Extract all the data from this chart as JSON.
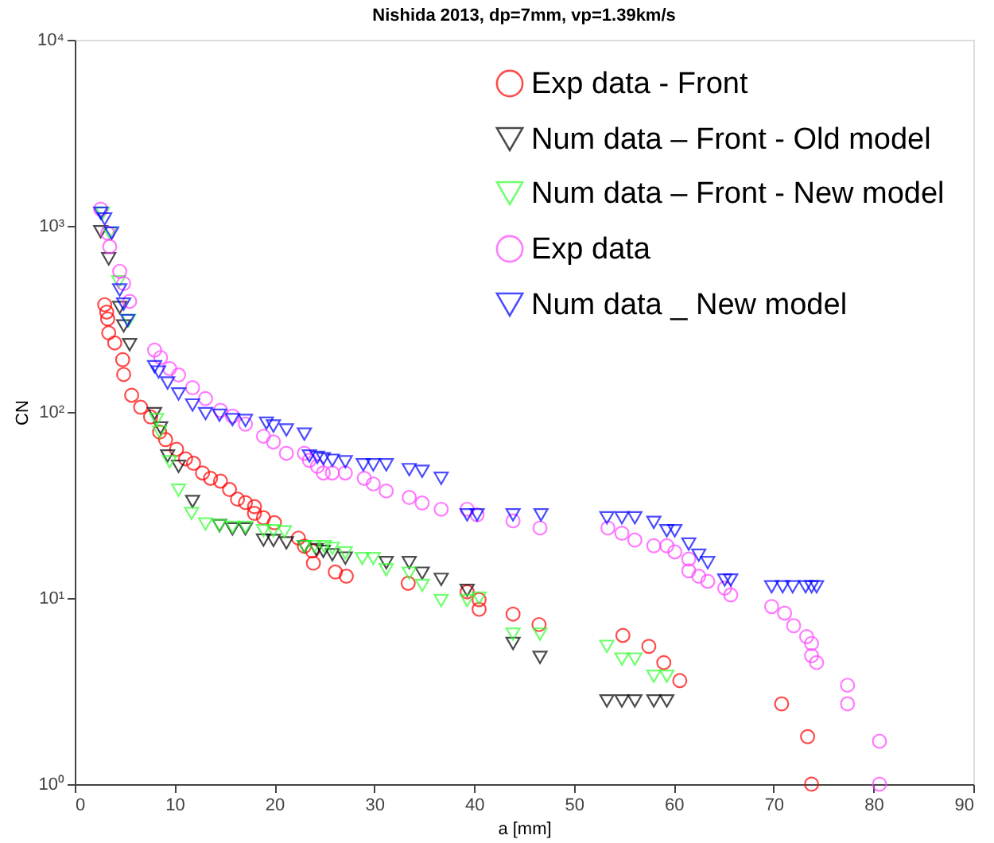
{
  "chart_data": {
    "type": "scatter",
    "title": "Nishida 2013, dp=7mm, vp=1.39km/s",
    "xlabel": "a [mm]",
    "ylabel": "CN",
    "xlim": [
      0,
      90
    ],
    "xticks": [
      0,
      10,
      20,
      30,
      40,
      50,
      60,
      70,
      80,
      90
    ],
    "ylim": [
      1,
      10000
    ],
    "yticks": [
      {
        "value": 1,
        "label": "10⁰"
      },
      {
        "value": 10,
        "label": "10¹"
      },
      {
        "value": 100,
        "label": "10²"
      },
      {
        "value": 1000,
        "label": "10³"
      },
      {
        "value": 10000,
        "label": "10⁴"
      }
    ],
    "log": true,
    "grid": false,
    "legend": "top right",
    "series": [
      {
        "name": "Exp data - Front",
        "color": "#ff0000",
        "marker": "circle",
        "x": [
          3.0,
          3.2,
          3.3,
          3.4,
          4.0,
          4.8,
          4.9,
          5.7,
          6.6,
          7.6,
          8.5,
          9.1,
          10.2,
          11.1,
          11.9,
          12.8,
          13.6,
          14.6,
          15.5,
          16.3,
          17.1,
          18.0,
          18.0,
          18.9,
          20.0,
          22.4,
          23.0,
          23.8,
          23.9,
          26.1,
          27.2,
          33.4,
          39.3,
          40.5,
          40.5,
          43.9,
          46.5,
          54.9,
          57.5,
          59.0,
          60.6,
          70.8,
          73.4,
          73.8
        ],
        "values": [
          377,
          344,
          316,
          266,
          235,
          191,
          159,
          123,
          106,
          94,
          78,
          71,
          63,
          56,
          53,
          47,
          44,
          42.5,
          38.3,
          34,
          32.6,
          31,
          28.5,
          27,
          25.4,
          21,
          19,
          17.9,
          15.4,
          13.8,
          13.1,
          12,
          10.8,
          9.8,
          8.7,
          8.2,
          7.2,
          6.3,
          5.5,
          4.5,
          3.6,
          2.7,
          1.8,
          1.0
        ]
      },
      {
        "name": "Num data – Front - Old model",
        "color": "#000000",
        "marker": "triangle",
        "x": [
          2.6,
          3.4,
          4.5,
          4.9,
          5.5,
          8.0,
          8.6,
          9.3,
          10.4,
          11.8,
          13.1,
          14.5,
          15.8,
          17.1,
          18.9,
          19.9,
          21.2,
          23.0,
          24.2,
          24.9,
          25.8,
          27.1,
          31.2,
          33.5,
          34.8,
          36.7,
          39.3,
          43.9,
          46.6,
          53.3,
          54.8,
          56.1,
          58.0,
          59.3
        ],
        "values": [
          930,
          665,
          364,
          290,
          230,
          98,
          82,
          58,
          51,
          33,
          null,
          24.5,
          23.5,
          23.5,
          20.5,
          20.4,
          19.8,
          18.9,
          18.2,
          17.8,
          17.1,
          16.4,
          15.5,
          15.5,
          13.6,
          12.6,
          11,
          5.7,
          4.8,
          2.8,
          2.8,
          2.8,
          2.8,
          2.8
        ]
      },
      {
        "name": "Num data – Front - New model",
        "color": "#33ff33",
        "marker": "triangle",
        "x": [
          2.8,
          3.5,
          4.4,
          5.4,
          8.2,
          8.5,
          9.5,
          10.4,
          11.7,
          13.1,
          14.5,
          15.8,
          17.1,
          18.9,
          19.9,
          21.0,
          23.0,
          24.0,
          25.0,
          25.8,
          27.1,
          28.8,
          29.9,
          31.2,
          33.5,
          34.8,
          36.7,
          39.3,
          40.5,
          43.9,
          46.6,
          53.3,
          54.8,
          56.1,
          58.0,
          59.3
        ],
        "values": [
          1170,
          915,
          500,
          310,
          91,
          78,
          54,
          38,
          28.5,
          25,
          24.5,
          24,
          24,
          23,
          23,
          22.7,
          18.9,
          18.9,
          18.9,
          18.5,
          17.5,
          16.3,
          16.3,
          14.2,
          13.6,
          11.7,
          9.7,
          9.7,
          10,
          6.4,
          6.4,
          5.5,
          4.7,
          4.7,
          3.8,
          3.8
        ]
      },
      {
        "name": "Exp data",
        "color": "#ff44ff",
        "marker": "circle",
        "x": [
          2.6,
          3.3,
          3.5,
          4.5,
          4.9,
          5.5,
          8.0,
          8.6,
          9.5,
          10.4,
          11.8,
          13.1,
          14.6,
          15.8,
          17.1,
          18.9,
          19.9,
          21.2,
          23.0,
          23.5,
          24.3,
          24.9,
          25.8,
          27.1,
          29.0,
          29.9,
          31.2,
          33.5,
          34.8,
          36.7,
          39.3,
          40.3,
          43.9,
          46.6,
          53.4,
          54.8,
          56.1,
          58.0,
          59.3,
          60.1,
          61.5,
          61.5,
          62.5,
          63.4,
          65.1,
          65.7,
          69.8,
          71.1,
          72.0,
          73.3,
          73.8,
          73.8,
          74.3,
          77.4,
          77.4,
          80.6,
          80.6
        ],
        "values": [
          1230,
          915,
          774,
          570,
          490,
          393,
          215,
          196,
          171,
          158,
          135,
          118,
          102,
          95,
          86,
          74,
          69,
          60,
          60,
          55,
          51,
          47,
          47,
          47,
          44,
          41,
          37.6,
          34.7,
          32.4,
          30,
          30,
          28,
          26,
          23.8,
          23.8,
          22.3,
          20.5,
          19.1,
          19.1,
          17.7,
          16.2,
          14,
          13.1,
          12.3,
          11.3,
          10.4,
          9,
          8.3,
          7.1,
          6.2,
          5.7,
          4.9,
          4.5,
          3.4,
          2.7,
          1.7,
          1.0
        ]
      },
      {
        "name": "Num data _ New model",
        "color": "#0000ff",
        "marker": "triangle",
        "x": [
          2.6,
          3.0,
          3.7,
          4.5,
          4.9,
          5.3,
          8.0,
          8.4,
          9.3,
          10.4,
          11.8,
          13.1,
          14.5,
          15.8,
          17.1,
          19.2,
          19.9,
          21.2,
          23.0,
          23.5,
          24.3,
          24.9,
          25.8,
          27.1,
          28.9,
          29.9,
          31.2,
          33.5,
          34.8,
          36.7,
          39.3,
          40.3,
          43.9,
          46.7,
          53.3,
          54.8,
          56.1,
          58.0,
          59.3,
          60.1,
          61.5,
          62.5,
          63.4,
          65.1,
          65.7,
          69.8,
          70.9,
          71.9,
          73.2,
          73.8,
          74.3
        ],
        "values": [
          1170,
          1090,
          915,
          452,
          380,
          310,
          175,
          164,
          143,
          125,
          109,
          98,
          96,
          91,
          90,
          87,
          84,
          80,
          76,
          58,
          57,
          56,
          55,
          54,
          52,
          52,
          52,
          49,
          48,
          44,
          28,
          28,
          28,
          28,
          27,
          27,
          27,
          25.5,
          23,
          23,
          19.5,
          17,
          15.5,
          12.5,
          12.5,
          11.5,
          11.5,
          11.5,
          11.5,
          11.5,
          11.5
        ]
      }
    ]
  }
}
